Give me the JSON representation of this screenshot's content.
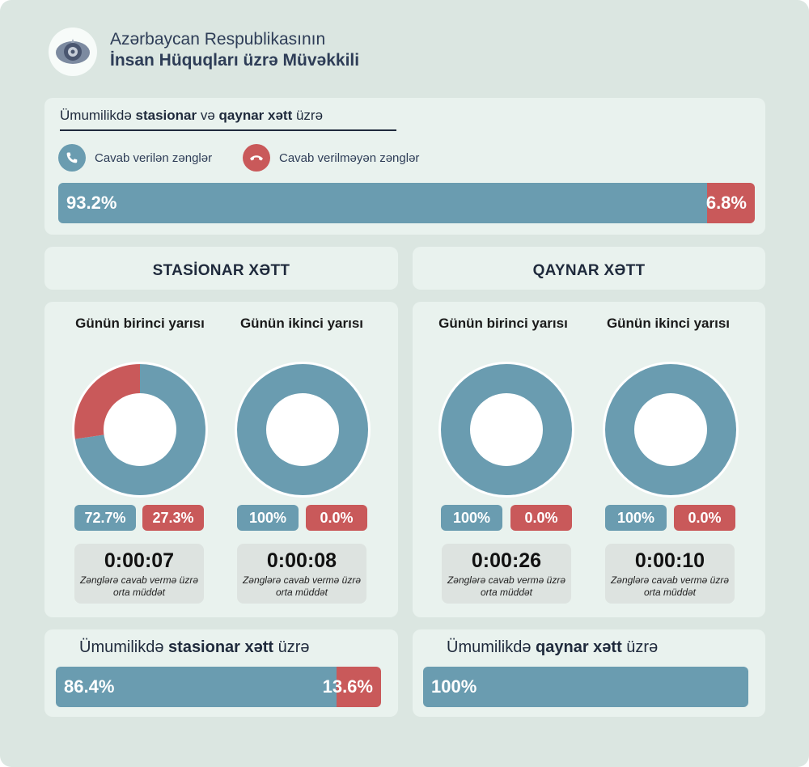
{
  "header": {
    "org_line1": "Azərbaycan Respublikasının",
    "org_line2": "İnsan Hüquqları üzrə Müvəkkili",
    "logo": "ombudsman-emblem-icon"
  },
  "colors": {
    "answered": "#6a9cb0",
    "unanswered": "#c9595a",
    "panel": "#e9f2ee",
    "background": "#dbe6e1"
  },
  "overall": {
    "title_pre": "Ümumilikdə ",
    "title_b1": "stasionar",
    "title_mid": " və ",
    "title_b2": "qaynar xətt",
    "title_post": " üzrə",
    "legend": [
      {
        "label": "Cavab verilən zənglər",
        "icon": "phone-icon",
        "color": "#6a9cb0"
      },
      {
        "label": "Cavab verilməyən zənglər",
        "icon": "phone-hangup-icon",
        "color": "#c9595a"
      }
    ],
    "answered_label": "93.2%",
    "unanswered_label": "6.8%"
  },
  "stationary": {
    "title": "STASİONAR XƏTT",
    "halves": [
      {
        "title": "Günün birinci yarısı",
        "answered_label": "72.7%",
        "unanswered_label": "27.3%",
        "time": "0:00:07",
        "time_label": "Zənglərə cavab vermə üzrə orta müddət"
      },
      {
        "title": "Günün ikinci yarısı",
        "answered_label": "100%",
        "unanswered_label": "0.0%",
        "time": "0:00:08",
        "time_label": "Zənglərə cavab vermə üzrə orta müddət"
      }
    ],
    "total": {
      "title_pre": "Ümumilikdə ",
      "title_b": "stasionar xətt",
      "title_post": " üzrə",
      "answered_label": "86.4%",
      "unanswered_label": "13.6%"
    }
  },
  "hotline": {
    "title": "QAYNAR XƏTT",
    "halves": [
      {
        "title": "Günün birinci yarısı",
        "answered_label": "100%",
        "unanswered_label": "0.0%",
        "time": "0:00:26",
        "time_label": "Zənglərə cavab vermə üzrə orta müddət"
      },
      {
        "title": "Günün ikinci yarısı",
        "answered_label": "100%",
        "unanswered_label": "0.0%",
        "time": "0:00:10",
        "time_label": "Zənglərə cavab vermə üzrə orta müddət"
      }
    ],
    "total": {
      "title_pre": "Ümumilikdə ",
      "title_b": "qaynar xətt",
      "title_post": " üzrə",
      "answered_label": "100%"
    }
  },
  "chart_data": [
    {
      "type": "bar",
      "title": "Ümumilikdə stasionar və qaynar xətt üzrə",
      "categories": [
        "Cavab verilən zənglər",
        "Cavab verilməyən zənglər"
      ],
      "values": [
        93.2,
        6.8
      ]
    },
    {
      "type": "pie",
      "title": "STASİONAR XƏTT — Günün birinci yarısı",
      "categories": [
        "Cavab verilən zənglər",
        "Cavab verilməyən zənglər"
      ],
      "values": [
        72.7,
        27.3
      ]
    },
    {
      "type": "pie",
      "title": "STASİONAR XƏTT — Günün ikinci yarısı",
      "categories": [
        "Cavab verilən zənglər",
        "Cavab verilməyən zənglər"
      ],
      "values": [
        100,
        0.0
      ]
    },
    {
      "type": "pie",
      "title": "QAYNAR XƏTT — Günün birinci yarısı",
      "categories": [
        "Cavab verilən zənglər",
        "Cavab verilməyən zənglər"
      ],
      "values": [
        100,
        0.0
      ]
    },
    {
      "type": "pie",
      "title": "QAYNAR XƏTT — Günün ikinci yarısı",
      "categories": [
        "Cavab verilən zənglər",
        "Cavab verilməyən zənglər"
      ],
      "values": [
        100,
        0.0
      ]
    },
    {
      "type": "bar",
      "title": "Ümumilikdə stasionar xətt üzrə",
      "categories": [
        "Cavab verilən zənglər",
        "Cavab verilməyən zənglər"
      ],
      "values": [
        86.4,
        13.6
      ]
    },
    {
      "type": "bar",
      "title": "Ümumilikdə qaynar xətt üzrə",
      "categories": [
        "Cavab verilən zənglər",
        "Cavab verilməyən zənglər"
      ],
      "values": [
        100,
        0
      ]
    }
  ]
}
